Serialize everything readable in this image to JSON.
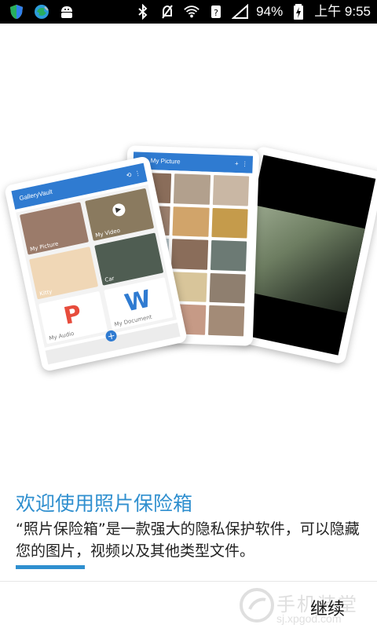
{
  "status_bar": {
    "battery": "94%",
    "time": "上午 9:55",
    "icons_left": [
      "shield-icon",
      "globe-icon",
      "android-icon"
    ],
    "icons_right": [
      "bluetooth-icon",
      "mute-icon",
      "wifi-icon",
      "sim-question-icon",
      "signal-icon",
      "battery-charging-icon"
    ]
  },
  "hero": {
    "front_card_title": "GalleryVault",
    "front_card_items": [
      "My Picture",
      "My Video",
      "Kitty",
      "Car",
      "My Audio",
      "My Document"
    ],
    "middle_card_title": "My Picture"
  },
  "onboarding": {
    "title": "欢迎使用照片保险箱",
    "description": "“照片保险箱”是一款强大的隐私保护软件，可以隐藏您的图片，视频以及其他类型文件。",
    "progress": 0.2
  },
  "footer": {
    "continue_label": "继续",
    "watermark_main": "手机装堂",
    "watermark_sub": "sj.xpgod.com"
  },
  "colors": {
    "accent": "#2f8fcf",
    "card_blue": "#2f7bd1"
  }
}
